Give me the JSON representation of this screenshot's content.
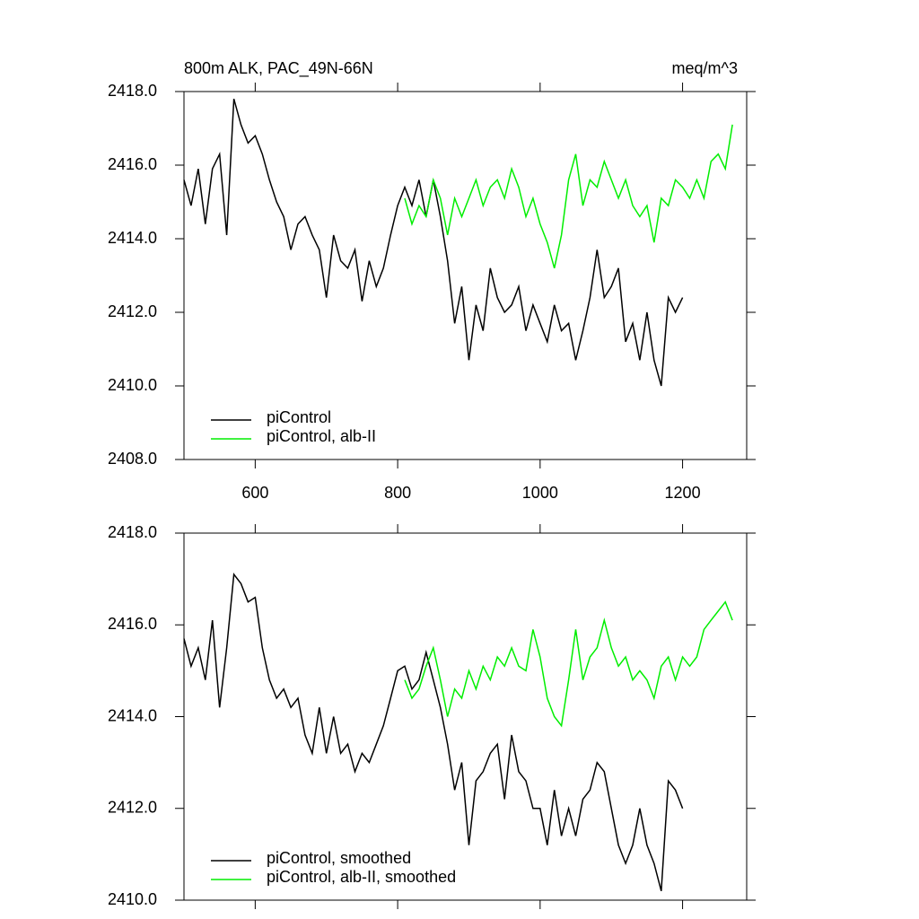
{
  "chart_data": [
    {
      "type": "line",
      "title": "800m ALK, PAC_49N-66N",
      "units": "meq/m^3",
      "xlim": [
        500,
        1290
      ],
      "xticks": [
        600,
        800,
        1000,
        1200
      ],
      "ylim": [
        2408,
        2418
      ],
      "yticks": [
        {
          "value": 2408,
          "label": "2408.0"
        },
        {
          "value": 2410,
          "label": "2410.0"
        },
        {
          "value": 2412,
          "label": "2412.0"
        },
        {
          "value": 2414,
          "label": "2414.0"
        },
        {
          "value": 2416,
          "label": "2416.0"
        },
        {
          "value": 2418,
          "label": "2418.0"
        }
      ],
      "legend": "lower left",
      "series": [
        {
          "name": "piControl",
          "color": "#000000",
          "x": [
            500,
            510,
            520,
            530,
            540,
            550,
            560,
            570,
            580,
            590,
            600,
            610,
            620,
            630,
            640,
            650,
            660,
            670,
            680,
            690,
            700,
            710,
            720,
            730,
            740,
            750,
            760,
            770,
            780,
            790,
            800,
            810,
            820,
            830,
            840,
            850,
            860,
            870,
            880,
            890,
            900,
            910,
            920,
            930,
            940,
            950,
            960,
            970,
            980,
            990,
            1000,
            1010,
            1020,
            1030,
            1040,
            1050,
            1060,
            1070,
            1080,
            1090,
            1100,
            1110,
            1120,
            1130,
            1140,
            1150,
            1160,
            1170,
            1180,
            1190,
            1200
          ],
          "values": [
            2415.6,
            2414.9,
            2415.9,
            2414.4,
            2415.9,
            2416.3,
            2414.1,
            2417.8,
            2417.1,
            2416.6,
            2416.8,
            2416.3,
            2415.6,
            2415.0,
            2414.6,
            2413.7,
            2414.4,
            2414.6,
            2414.1,
            2413.7,
            2412.4,
            2414.1,
            2413.4,
            2413.2,
            2413.7,
            2412.3,
            2413.4,
            2412.7,
            2413.2,
            2414.1,
            2414.9,
            2415.4,
            2414.9,
            2415.6,
            2414.6,
            2415.6,
            2414.6,
            2413.4,
            2411.7,
            2412.7,
            2410.7,
            2412.2,
            2411.5,
            2413.2,
            2412.4,
            2412.0,
            2412.2,
            2412.7,
            2411.5,
            2412.2,
            2411.7,
            2411.2,
            2412.2,
            2411.5,
            2411.7,
            2410.7,
            2411.5,
            2412.4,
            2413.7,
            2412.4,
            2412.7,
            2413.2,
            2411.2,
            2411.7,
            2410.7,
            2412.0,
            2410.7,
            2410.0,
            2412.4,
            2412.0,
            2412.4
          ]
        },
        {
          "name": "piControl, alb-II",
          "color": "#00ee00",
          "x": [
            810,
            820,
            830,
            840,
            850,
            860,
            870,
            880,
            890,
            900,
            910,
            920,
            930,
            940,
            950,
            960,
            970,
            980,
            990,
            1000,
            1010,
            1020,
            1030,
            1040,
            1050,
            1060,
            1070,
            1080,
            1090,
            1100,
            1110,
            1120,
            1130,
            1140,
            1150,
            1160,
            1170,
            1180,
            1190,
            1200,
            1210,
            1220,
            1230,
            1240,
            1250,
            1260,
            1270
          ],
          "values": [
            2415.1,
            2414.4,
            2414.9,
            2414.6,
            2415.6,
            2415.1,
            2414.1,
            2415.1,
            2414.6,
            2415.1,
            2415.6,
            2414.9,
            2415.4,
            2415.6,
            2415.1,
            2415.9,
            2415.4,
            2414.6,
            2415.1,
            2414.4,
            2413.9,
            2413.2,
            2414.1,
            2415.6,
            2416.3,
            2414.9,
            2415.6,
            2415.4,
            2416.1,
            2415.6,
            2415.1,
            2415.6,
            2414.9,
            2414.6,
            2414.9,
            2413.9,
            2415.1,
            2414.9,
            2415.6,
            2415.4,
            2415.1,
            2415.6,
            2415.1,
            2416.1,
            2416.3,
            2415.9,
            2417.1
          ]
        }
      ]
    },
    {
      "type": "line",
      "xlim": [
        500,
        1290
      ],
      "xticks": [
        600,
        800,
        1000,
        1200
      ],
      "show_xtick_labels": false,
      "ylim": [
        2410,
        2418
      ],
      "yticks": [
        {
          "value": 2410,
          "label": "2410.0"
        },
        {
          "value": 2412,
          "label": "2412.0"
        },
        {
          "value": 2414,
          "label": "2414.0"
        },
        {
          "value": 2416,
          "label": "2416.0"
        },
        {
          "value": 2418,
          "label": "2418.0"
        }
      ],
      "legend": "lower left",
      "series": [
        {
          "name": "piControl, smoothed",
          "color": "#000000",
          "x": [
            500,
            510,
            520,
            530,
            540,
            550,
            560,
            570,
            580,
            590,
            600,
            610,
            620,
            630,
            640,
            650,
            660,
            670,
            680,
            690,
            700,
            710,
            720,
            730,
            740,
            750,
            760,
            770,
            780,
            790,
            800,
            810,
            820,
            830,
            840,
            850,
            860,
            870,
            880,
            890,
            900,
            910,
            920,
            930,
            940,
            950,
            960,
            970,
            980,
            990,
            1000,
            1010,
            1020,
            1030,
            1040,
            1050,
            1060,
            1070,
            1080,
            1090,
            1100,
            1110,
            1120,
            1130,
            1140,
            1150,
            1160,
            1170,
            1180,
            1190,
            1200
          ],
          "values": [
            2415.7,
            2415.1,
            2415.5,
            2414.8,
            2416.1,
            2414.2,
            2415.5,
            2417.1,
            2416.9,
            2416.5,
            2416.6,
            2415.5,
            2414.8,
            2414.4,
            2414.6,
            2414.2,
            2414.4,
            2413.6,
            2413.2,
            2414.2,
            2413.2,
            2414.0,
            2413.2,
            2413.4,
            2412.8,
            2413.2,
            2413.0,
            2413.4,
            2413.8,
            2414.4,
            2415.0,
            2415.1,
            2414.6,
            2414.8,
            2415.4,
            2414.8,
            2414.2,
            2413.4,
            2412.4,
            2413.0,
            2411.2,
            2412.6,
            2412.8,
            2413.2,
            2413.4,
            2412.2,
            2413.6,
            2412.8,
            2412.6,
            2412.0,
            2412.0,
            2411.2,
            2412.4,
            2411.4,
            2412.0,
            2411.4,
            2412.2,
            2412.4,
            2413.0,
            2412.8,
            2412.0,
            2411.2,
            2410.8,
            2411.2,
            2412.0,
            2411.2,
            2410.8,
            2410.2,
            2412.6,
            2412.4,
            2412.0
          ]
        },
        {
          "name": "piControl, alb-II, smoothed",
          "color": "#00ee00",
          "x": [
            810,
            820,
            830,
            840,
            850,
            860,
            870,
            880,
            890,
            900,
            910,
            920,
            930,
            940,
            950,
            960,
            970,
            980,
            990,
            1000,
            1010,
            1020,
            1030,
            1040,
            1050,
            1060,
            1070,
            1080,
            1090,
            1100,
            1110,
            1120,
            1130,
            1140,
            1150,
            1160,
            1170,
            1180,
            1190,
            1200,
            1210,
            1220,
            1230,
            1240,
            1250,
            1260,
            1270
          ],
          "values": [
            2414.8,
            2414.4,
            2414.6,
            2415.1,
            2415.5,
            2414.8,
            2414.0,
            2414.6,
            2414.4,
            2415.0,
            2414.6,
            2415.1,
            2414.8,
            2415.3,
            2415.1,
            2415.5,
            2415.1,
            2415.0,
            2415.9,
            2415.3,
            2414.4,
            2414.0,
            2413.8,
            2414.8,
            2415.9,
            2414.8,
            2415.3,
            2415.5,
            2416.1,
            2415.5,
            2415.1,
            2415.3,
            2414.8,
            2415.0,
            2414.8,
            2414.4,
            2415.1,
            2415.3,
            2414.8,
            2415.3,
            2415.1,
            2415.3,
            2415.9,
            2416.1,
            2416.3,
            2416.5,
            2416.1
          ]
        }
      ]
    }
  ]
}
